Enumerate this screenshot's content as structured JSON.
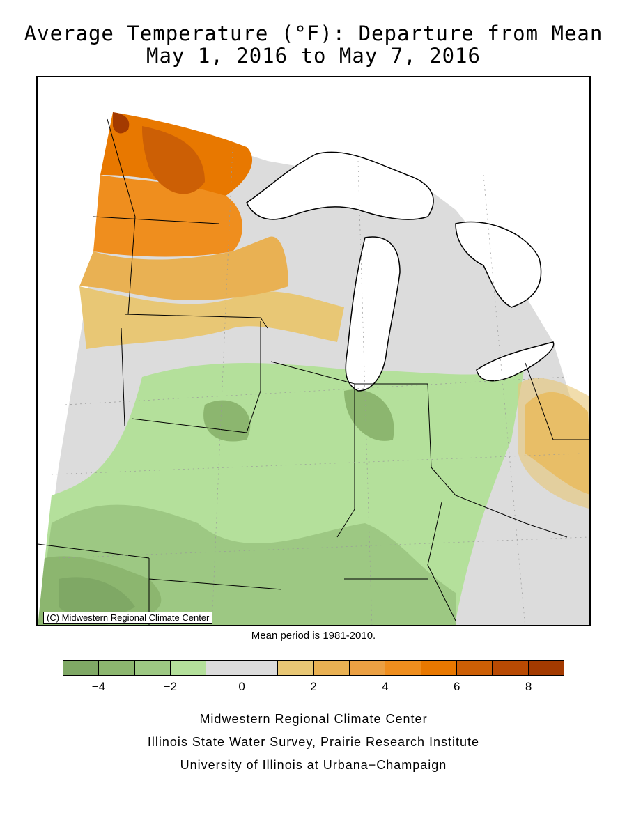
{
  "title": {
    "line1": "Average Temperature (°F): Departure from Mean",
    "line2": "May 1, 2016 to May 7, 2016"
  },
  "map": {
    "copyright": "(C) Midwestern Regional Climate Center",
    "mean_period": "Mean period is 1981-2010."
  },
  "legend": {
    "colors": [
      "#7fa865",
      "#8cb66f",
      "#9dc883",
      "#b4e09b",
      "#dcdcdc",
      "#dcdcdc",
      "#e8c775",
      "#e9b153",
      "#eba043",
      "#ef8e1e",
      "#e87800",
      "#cc5f05",
      "#b84a03",
      "#a33a00"
    ],
    "tick_labels": [
      "−4",
      "−2",
      "0",
      "2",
      "4",
      "6",
      "8"
    ],
    "tick_values": [
      -4,
      -2,
      0,
      2,
      4,
      6,
      8
    ],
    "min": -5,
    "max": 9
  },
  "credits": {
    "line1": "Midwestern Regional Climate Center",
    "line2": "Illinois State Water Survey, Prairie Research Institute",
    "line3": "University of Illinois at Urbana−Champaign"
  }
}
